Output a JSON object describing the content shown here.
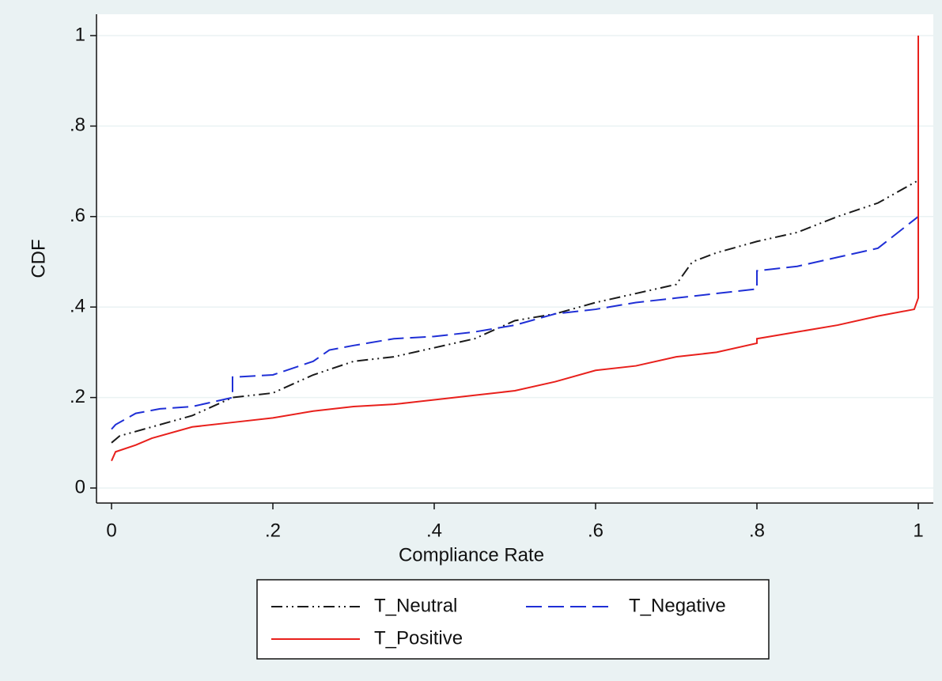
{
  "chart_data": {
    "type": "line",
    "x_label": "Compliance Rate",
    "y_label": "CDF",
    "xlim": [
      0,
      1
    ],
    "ylim": [
      0,
      1
    ],
    "xticks": [
      0,
      {
        "value": 0.2,
        "label": ".2"
      },
      {
        "value": 0.4,
        "label": ".4"
      },
      {
        "value": 0.6,
        "label": ".6"
      },
      {
        "value": 0.8,
        "label": ".8"
      },
      1
    ],
    "yticks": [
      0,
      {
        "value": 0.2,
        "label": ".2"
      },
      {
        "value": 0.4,
        "label": ".4"
      },
      {
        "value": 0.6,
        "label": ".6"
      },
      {
        "value": 0.8,
        "label": ".8"
      },
      1
    ],
    "grid": true,
    "legend": "bottom",
    "series": [
      {
        "name": "T_Neutral",
        "color": "#1a1a1a",
        "dash": "14,5,2,5,2,5",
        "x": [
          0,
          0.01,
          0.05,
          0.1,
          0.15,
          0.2,
          0.25,
          0.3,
          0.35,
          0.4,
          0.45,
          0.5,
          0.55,
          0.6,
          0.65,
          0.7,
          0.72,
          0.75,
          0.8,
          0.85,
          0.9,
          0.95,
          1
        ],
        "values": [
          0.1,
          0.115,
          0.135,
          0.16,
          0.2,
          0.21,
          0.25,
          0.28,
          0.29,
          0.31,
          0.33,
          0.37,
          0.385,
          0.41,
          0.43,
          0.45,
          0.5,
          0.52,
          0.545,
          0.565,
          0.6,
          0.63,
          0.68
        ]
      },
      {
        "name": "T_Negative",
        "color": "#1f2fd6",
        "dash": "20,8",
        "x": [
          0,
          0.005,
          0.03,
          0.06,
          0.1,
          0.15,
          0.15,
          0.2,
          0.25,
          0.27,
          0.3,
          0.35,
          0.4,
          0.45,
          0.5,
          0.55,
          0.6,
          0.65,
          0.7,
          0.75,
          0.8,
          0.8,
          0.85,
          0.9,
          0.95,
          1
        ],
        "values": [
          0.13,
          0.14,
          0.165,
          0.175,
          0.18,
          0.2,
          0.245,
          0.25,
          0.28,
          0.305,
          0.315,
          0.33,
          0.335,
          0.345,
          0.36,
          0.385,
          0.395,
          0.41,
          0.42,
          0.43,
          0.44,
          0.48,
          0.49,
          0.51,
          0.53,
          0.6
        ]
      },
      {
        "name": "T_Positive",
        "color": "#e8201c",
        "dash": "none",
        "x": [
          0,
          0.005,
          0.03,
          0.05,
          0.1,
          0.15,
          0.2,
          0.25,
          0.3,
          0.35,
          0.4,
          0.45,
          0.5,
          0.55,
          0.6,
          0.65,
          0.7,
          0.75,
          0.8,
          0.8,
          0.85,
          0.9,
          0.95,
          0.995,
          1,
          1
        ],
        "values": [
          0.06,
          0.08,
          0.095,
          0.11,
          0.135,
          0.145,
          0.155,
          0.17,
          0.18,
          0.185,
          0.195,
          0.205,
          0.215,
          0.235,
          0.26,
          0.27,
          0.29,
          0.3,
          0.32,
          0.33,
          0.345,
          0.36,
          0.38,
          0.395,
          0.42,
          1
        ]
      }
    ]
  }
}
